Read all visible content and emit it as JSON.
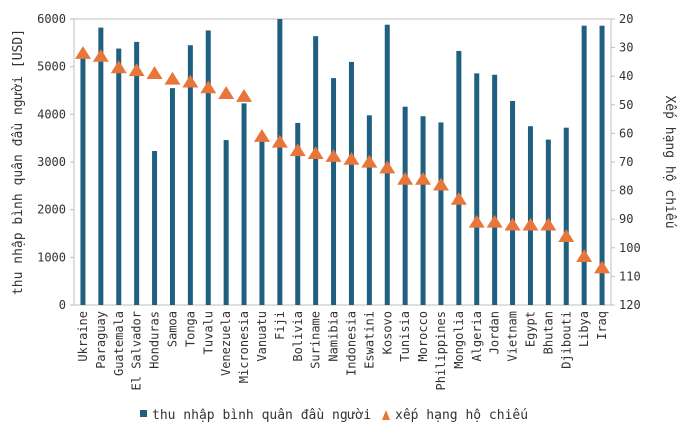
{
  "chart_data": {
    "type": "bar",
    "categories": [
      "Ukraine",
      "Paraguay",
      "Guatemala",
      "El Salvador",
      "Honduras",
      "Samoa",
      "Tonga",
      "Tuvalu",
      "Venezuela",
      "Micronesia",
      "Vanuatu",
      "Fiji",
      "Bolivia",
      "Suriname",
      "Namibia",
      "Indonesia",
      "Eswatini",
      "Kosovo",
      "Tunisia",
      "Morocco",
      "Philippines",
      "Mongolia",
      "Algeria",
      "Jordan",
      "Vietnam",
      "Egypt",
      "Bhutan",
      "Djibouti",
      "Libya",
      "Iraq"
    ],
    "series": [
      {
        "name": "thu nhập bình quân đầu người",
        "type": "bar",
        "axis": "left",
        "color": "#1f5f7f",
        "values": [
          5230,
          5820,
          5380,
          5520,
          3230,
          4550,
          5450,
          5760,
          3460,
          4230,
          3530,
          6000,
          3820,
          5640,
          4760,
          5100,
          3980,
          5880,
          4160,
          3960,
          3830,
          5330,
          4860,
          4830,
          4280,
          3750,
          3470,
          3720,
          5860,
          5860
        ]
      },
      {
        "name": "xếp hạng hộ chiếu",
        "type": "scatter",
        "axis": "right",
        "color": "#e8763a",
        "values": [
          32,
          33,
          37,
          38,
          39,
          41,
          42,
          44,
          46,
          47,
          61,
          63,
          66,
          67,
          68,
          69,
          70,
          72,
          76,
          76,
          78,
          83,
          91,
          91,
          92,
          92,
          92,
          96,
          103,
          107
        ]
      }
    ],
    "y_left": {
      "label": "thu nhập bình quân đầu người [USD]",
      "min": 0,
      "max": 6000,
      "ticks": [
        0,
        1000,
        2000,
        3000,
        4000,
        5000,
        6000
      ]
    },
    "y_right": {
      "label": "Xếp hạng hộ chiếu",
      "min": 20,
      "max": 120,
      "ticks": [
        20,
        30,
        40,
        50,
        60,
        70,
        80,
        90,
        100,
        110,
        120
      ],
      "reversed": true
    },
    "legend_position": "bottom",
    "grid": false
  }
}
